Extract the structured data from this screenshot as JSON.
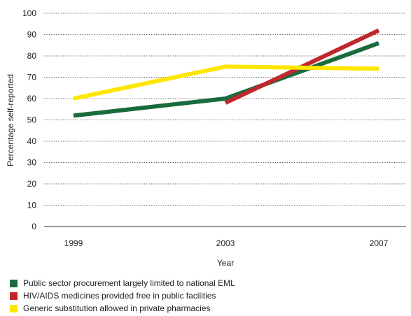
{
  "chart_data": {
    "type": "line",
    "title": "",
    "xlabel": "Year",
    "ylabel": "Percentage self-reported",
    "x": [
      "1999",
      "2003",
      "2007"
    ],
    "ylim": [
      0,
      100
    ],
    "yticks": [
      "0",
      "10",
      "20",
      "30",
      "40",
      "50",
      "60",
      "70",
      "80",
      "90",
      "100"
    ],
    "grid": true,
    "legend_position": "bottom",
    "series": [
      {
        "name": "Public sector procurement largely limited to national EML",
        "color": "#1a6b3c",
        "values": [
          52,
          60,
          86
        ]
      },
      {
        "name": "HIV/AIDS medicines provided free in public facilities",
        "color": "#c0272d",
        "values": [
          null,
          58,
          92
        ]
      },
      {
        "name": "Generic substitution allowed in private pharmacies",
        "color": "#ffe600",
        "values": [
          60,
          75,
          74
        ]
      }
    ]
  }
}
